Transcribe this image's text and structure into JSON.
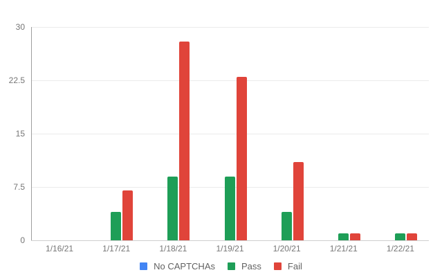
{
  "chart_data": {
    "type": "bar",
    "title": "",
    "xlabel": "",
    "ylabel": "",
    "ylim": [
      0,
      30
    ],
    "yticks": [
      "0",
      "7.5",
      "15",
      "22.5",
      "30"
    ],
    "grid": true,
    "legend_position": "bottom",
    "categories": [
      "1/16/21",
      "1/17/21",
      "1/18/21",
      "1/19/21",
      "1/20/21",
      "1/21/21",
      "1/22/21"
    ],
    "series": [
      {
        "name": "No CAPTCHAs",
        "color": "#4285f4",
        "values": [
          0,
          0,
          0,
          0,
          0,
          0,
          0
        ]
      },
      {
        "name": "Pass",
        "color": "#1e9e57",
        "values": [
          0,
          4,
          9,
          9,
          4,
          1,
          1
        ]
      },
      {
        "name": "Fail",
        "color": "#e0443a",
        "values": [
          0,
          7,
          28,
          23,
          11,
          1,
          1
        ]
      }
    ]
  }
}
